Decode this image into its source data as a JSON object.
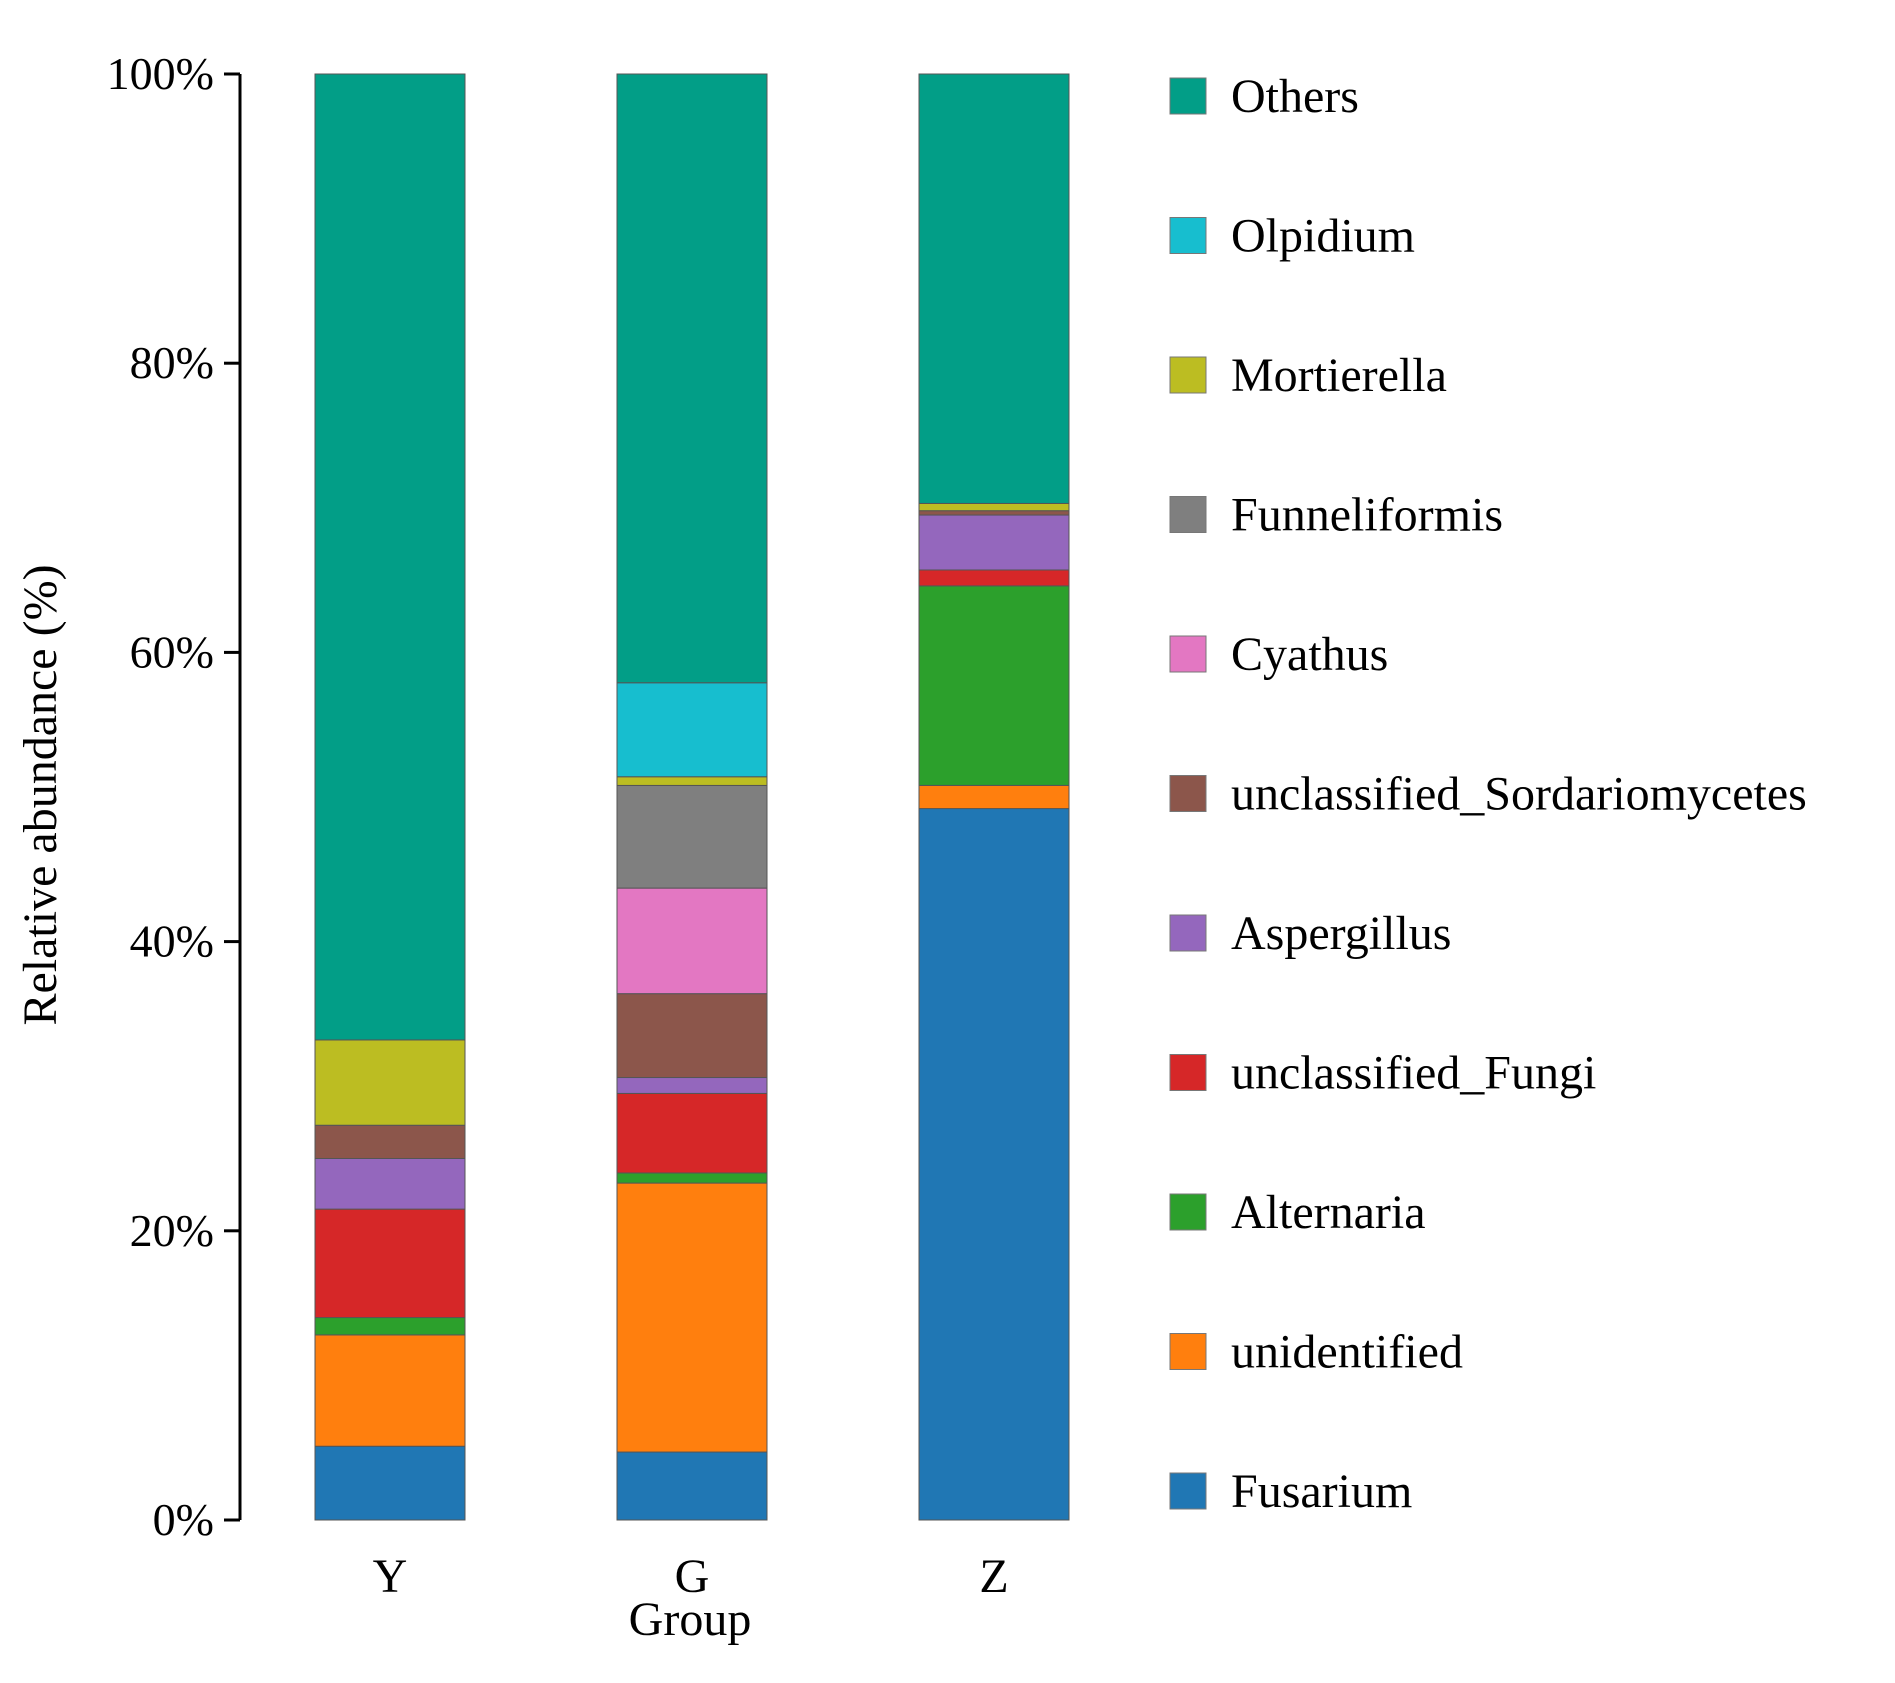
{
  "chart_data": {
    "type": "stacked-bar",
    "title": "",
    "xlabel": "Group",
    "ylabel": "Relative abundance (%)",
    "ylim": [
      0,
      100
    ],
    "yticks": [
      0,
      20,
      40,
      60,
      80,
      100
    ],
    "ytick_labels": [
      "0%",
      "20%",
      "40%",
      "60%",
      "80%",
      "100%"
    ],
    "categories": [
      "Y",
      "G",
      "Z"
    ],
    "legend_position": "right",
    "series": [
      {
        "name": "Fusarium",
        "color": "#2077b4",
        "values": [
          5.1,
          4.7,
          49.2
        ]
      },
      {
        "name": "unidentified",
        "color": "#ff7f0e",
        "values": [
          7.7,
          18.6,
          1.6
        ]
      },
      {
        "name": "Alternaria",
        "color": "#2ca02c",
        "values": [
          1.2,
          0.7,
          13.8
        ]
      },
      {
        "name": "unclassified_Fungi",
        "color": "#d62728",
        "values": [
          7.5,
          5.5,
          1.1
        ]
      },
      {
        "name": "Aspergillus",
        "color": "#9467bd",
        "values": [
          3.5,
          1.1,
          3.8
        ]
      },
      {
        "name": "unclassified_Sordariomycetes",
        "color": "#8c564b",
        "values": [
          2.3,
          5.8,
          0.3
        ]
      },
      {
        "name": "Cyathus",
        "color": "#e377c2",
        "values": [
          0.0,
          7.3,
          0.0
        ]
      },
      {
        "name": "Funneliformis",
        "color": "#7f7f7f",
        "values": [
          0.0,
          7.1,
          0.0
        ]
      },
      {
        "name": "Mortierella",
        "color": "#bcbd22",
        "values": [
          5.9,
          0.6,
          0.5
        ]
      },
      {
        "name": "Olpidium",
        "color": "#17becf",
        "values": [
          0.0,
          6.5,
          0.0
        ]
      },
      {
        "name": "Others",
        "color": "#029e87",
        "values": [
          66.8,
          42.1,
          29.7
        ]
      }
    ]
  }
}
